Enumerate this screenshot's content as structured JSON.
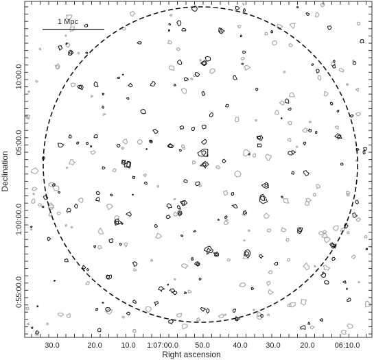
{
  "figure": {
    "xlabel": "Right ascension",
    "ylabel": "Declination",
    "x_tick_labels": [
      "30.0",
      "20.0",
      "10.0",
      "1:07:00.0",
      "50.0",
      "40.0",
      "30.0",
      "20.0",
      "06:10.0"
    ],
    "y_tick_labels": [
      "10:00.0",
      "05:00.0",
      "1:00:00.0",
      "0:55:00.0"
    ],
    "scale_bar_label": "1 Mpc",
    "circle_style": "dashed",
    "contour_colors": {
      "positive": "#111111",
      "negative": "#aaaaaa"
    }
  }
}
